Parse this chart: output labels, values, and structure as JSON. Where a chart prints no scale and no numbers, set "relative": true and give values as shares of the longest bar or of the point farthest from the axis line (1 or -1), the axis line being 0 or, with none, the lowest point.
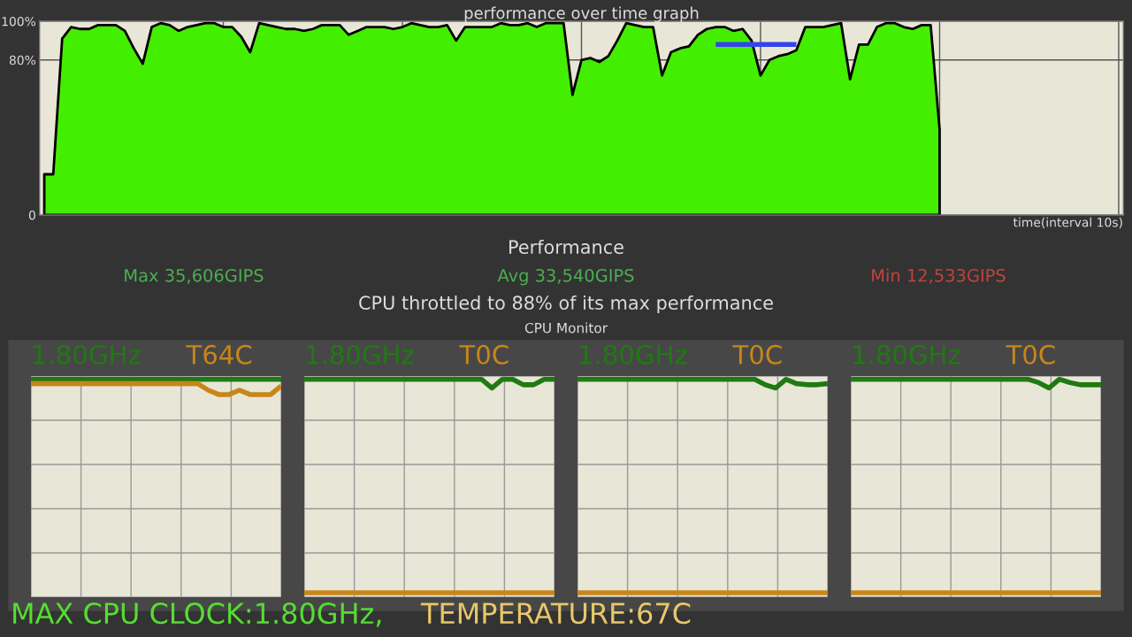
{
  "chart_data": [
    {
      "type": "area",
      "title": "performance over time graph",
      "xlabel": "time(interval 10s)",
      "categories": [
        null,
        null,
        null,
        null,
        null,
        null,
        null,
        null,
        null,
        null,
        null,
        null,
        null,
        null,
        null,
        null,
        null,
        null,
        null,
        null,
        null,
        null,
        null,
        null,
        null,
        null,
        null,
        null,
        null,
        null,
        null,
        null,
        null,
        null,
        null,
        null,
        null,
        null,
        null,
        null,
        null,
        null,
        null,
        null,
        null,
        null,
        null,
        null,
        null,
        null,
        null,
        null,
        null,
        null,
        null,
        null,
        null,
        null,
        null,
        null,
        null,
        null,
        null,
        null,
        null,
        null,
        null,
        null,
        null,
        null,
        null,
        null,
        null,
        null,
        null,
        null,
        null,
        null,
        null,
        null,
        null,
        null,
        null,
        null,
        null,
        null,
        null,
        null,
        null,
        null,
        null,
        null,
        null,
        null,
        null,
        null,
        null,
        null,
        null,
        null,
        null,
        null,
        null,
        null,
        null,
        null,
        null,
        null,
        null,
        null,
        null,
        null,
        null,
        null,
        null,
        null,
        null,
        null,
        null,
        null,
        null
      ],
      "series": [
        {
          "color": "#44ee00",
          "values": [
            21,
            21,
            91,
            97,
            96,
            96,
            98,
            98,
            98,
            95,
            86,
            78,
            97,
            99,
            98,
            95,
            97,
            98,
            99,
            99,
            97,
            97,
            92,
            84,
            99,
            98,
            97,
            96,
            96,
            95,
            96,
            98,
            98,
            98,
            93,
            95,
            97,
            97,
            97,
            96,
            97,
            99,
            98,
            97,
            97,
            98,
            90,
            97,
            97,
            97,
            97,
            99,
            98,
            98,
            99,
            97,
            99,
            99,
            99,
            62,
            80,
            81,
            79,
            82,
            90,
            99,
            98,
            97,
            97,
            72,
            84,
            86,
            87,
            93,
            96,
            97,
            97,
            95,
            96,
            90,
            72,
            80,
            82,
            83,
            85,
            97,
            97,
            97,
            98,
            99,
            70,
            88,
            88,
            97,
            99,
            99,
            97,
            96,
            98,
            98,
            44,
            null,
            null,
            null,
            null,
            null,
            null,
            null,
            null,
            null,
            null,
            null,
            null,
            null,
            null,
            null,
            null,
            null,
            null,
            null,
            null
          ]
        },
        {
          "type": "line",
          "color": "#3344ee",
          "values": [
            null,
            null,
            null,
            null,
            null,
            null,
            null,
            null,
            null,
            null,
            null,
            null,
            null,
            null,
            null,
            null,
            null,
            null,
            null,
            null,
            null,
            null,
            null,
            null,
            null,
            null,
            null,
            null,
            null,
            null,
            null,
            null,
            null,
            null,
            null,
            null,
            null,
            null,
            null,
            null,
            null,
            null,
            null,
            null,
            null,
            null,
            null,
            null,
            null,
            null,
            null,
            null,
            null,
            null,
            null,
            null,
            null,
            null,
            null,
            null,
            null,
            null,
            null,
            null,
            null,
            null,
            null,
            null,
            null,
            null,
            null,
            null,
            null,
            null,
            null,
            88,
            88,
            88,
            88,
            88,
            88,
            88,
            88,
            88,
            88,
            null,
            null,
            null,
            null,
            null,
            null,
            null,
            null,
            null,
            null,
            null,
            null,
            null,
            null,
            null,
            null,
            null,
            null,
            null,
            null,
            null,
            null,
            null,
            null,
            null,
            null,
            null,
            null,
            null,
            null,
            null,
            null,
            null,
            null,
            null,
            null
          ]
        }
      ],
      "ylim": [
        0,
        100
      ],
      "yticks": [
        0,
        {
          "value": 80,
          "label": "80%"
        },
        {
          "value": 100,
          "label": "100%"
        }
      ],
      "grid": true,
      "tick_labels": "y",
      "annotations": [
        "Performance",
        "Max 35,606GIPS",
        "Avg 33,540GIPS",
        "Min 12,533GIPS",
        "CPU throttled to 88% of its max performance",
        "CPU Monitor"
      ]
    },
    {
      "type": "line",
      "relative": true,
      "grid": true,
      "categories": [
        null,
        null,
        null,
        null,
        null,
        null,
        null,
        null,
        null,
        null,
        null,
        null,
        null,
        null,
        null,
        null,
        null,
        null,
        null,
        null,
        null,
        null,
        null,
        null,
        null
      ],
      "series": [
        {
          "name": "1.80GHz",
          "color": "#1f7a12",
          "values": [
            1,
            1,
            1,
            1,
            1,
            1,
            1,
            1,
            1,
            1,
            1,
            1,
            1,
            1,
            1,
            1,
            1,
            1,
            1,
            1,
            1,
            1,
            1,
            1,
            1
          ]
        },
        {
          "name": "T64C",
          "color": "#c8861a",
          "values": [
            0.98,
            0.98,
            0.98,
            0.98,
            0.98,
            0.98,
            0.98,
            0.98,
            0.98,
            0.98,
            0.98,
            0.98,
            0.98,
            0.98,
            0.98,
            0.98,
            0.98,
            0.95,
            0.93,
            0.93,
            0.95,
            0.93,
            0.93,
            0.93,
            0.97
          ]
        }
      ],
      "annotations": [
        "MAX CPU CLOCK:1.80GHz,",
        "TEMPERATURE:67C"
      ]
    },
    {
      "type": "line",
      "relative": true,
      "grid": true,
      "categories": [
        null,
        null,
        null,
        null,
        null,
        null,
        null,
        null,
        null,
        null,
        null,
        null,
        null,
        null,
        null,
        null,
        null,
        null,
        null,
        null,
        null,
        null,
        null,
        null,
        null
      ],
      "series": [
        {
          "name": "1.80GHz",
          "color": "#1f7a12",
          "values": [
            1,
            1,
            1,
            1,
            1,
            1,
            1,
            1,
            1,
            1,
            1,
            1,
            1,
            1,
            1,
            1,
            1,
            1,
            0.96,
            1,
            1,
            0.975,
            0.975,
            1,
            1
          ]
        },
        {
          "name": "T0C",
          "color": "#c8861a",
          "values": [
            0.02,
            0.02,
            0.02,
            0.02,
            0.02,
            0.02,
            0.02,
            0.02,
            0.02,
            0.02,
            0.02,
            0.02,
            0.02,
            0.02,
            0.02,
            0.02,
            0.02,
            0.02,
            0.02,
            0.02,
            0.02,
            0.02,
            0.02,
            0.02,
            0.02
          ]
        }
      ]
    },
    {
      "type": "line",
      "relative": true,
      "grid": true,
      "categories": [
        null,
        null,
        null,
        null,
        null,
        null,
        null,
        null,
        null,
        null,
        null,
        null,
        null,
        null,
        null,
        null,
        null,
        null,
        null,
        null,
        null,
        null,
        null,
        null,
        null
      ],
      "series": [
        {
          "name": "1.80GHz",
          "color": "#1f7a12",
          "values": [
            1,
            1,
            1,
            1,
            1,
            1,
            1,
            1,
            1,
            1,
            1,
            1,
            1,
            1,
            1,
            1,
            1,
            1,
            0.975,
            0.96,
            1,
            0.98,
            0.975,
            0.975,
            0.98
          ]
        },
        {
          "name": "T0C",
          "color": "#c8861a",
          "values": [
            0.02,
            0.02,
            0.02,
            0.02,
            0.02,
            0.02,
            0.02,
            0.02,
            0.02,
            0.02,
            0.02,
            0.02,
            0.02,
            0.02,
            0.02,
            0.02,
            0.02,
            0.02,
            0.02,
            0.02,
            0.02,
            0.02,
            0.02,
            0.02,
            0.02
          ]
        }
      ]
    },
    {
      "type": "line",
      "relative": true,
      "grid": true,
      "categories": [
        null,
        null,
        null,
        null,
        null,
        null,
        null,
        null,
        null,
        null,
        null,
        null,
        null,
        null,
        null,
        null,
        null,
        null,
        null,
        null,
        null,
        null,
        null,
        null,
        null
      ],
      "series": [
        {
          "name": "1.80GHz",
          "color": "#1f7a12",
          "values": [
            1,
            1,
            1,
            1,
            1,
            1,
            1,
            1,
            1,
            1,
            1,
            1,
            1,
            1,
            1,
            1,
            1,
            1,
            0.985,
            0.96,
            1,
            0.985,
            0.975,
            0.975,
            0.975
          ]
        },
        {
          "name": "T0C",
          "color": "#c8861a",
          "values": [
            0.02,
            0.02,
            0.02,
            0.02,
            0.02,
            0.02,
            0.02,
            0.02,
            0.02,
            0.02,
            0.02,
            0.02,
            0.02,
            0.02,
            0.02,
            0.02,
            0.02,
            0.02,
            0.02,
            0.02,
            0.02,
            0.02,
            0.02,
            0.02,
            0.02
          ]
        }
      ]
    }
  ]
}
